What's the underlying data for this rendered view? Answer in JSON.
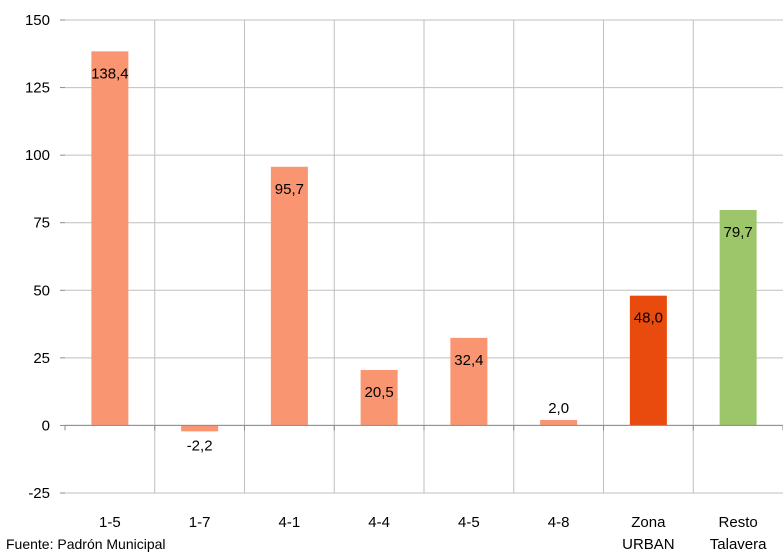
{
  "chart_data": {
    "type": "bar",
    "categories": [
      [
        "1-5"
      ],
      [
        "1-7"
      ],
      [
        "4-1"
      ],
      [
        "4-4"
      ],
      [
        "4-5"
      ],
      [
        "4-8"
      ],
      [
        "Zona",
        "URBAN"
      ],
      [
        "Resto",
        "Talavera"
      ]
    ],
    "values": [
      138.4,
      -2.2,
      95.7,
      20.5,
      32.4,
      2.0,
      48.0,
      79.7
    ],
    "value_labels": [
      "138,4",
      "-2,2",
      "95,7",
      "20,5",
      "32,4",
      "2,0",
      "48,0",
      "79,7"
    ],
    "bar_colors": [
      "#fa9572",
      "#fa9572",
      "#fa9572",
      "#fa9572",
      "#fa9572",
      "#fa9572",
      "#e94a0d",
      "#9dc66b"
    ],
    "ylim": [
      -25,
      150
    ],
    "yticks": [
      -25,
      0,
      25,
      50,
      75,
      100,
      125,
      150
    ],
    "grid": true,
    "grid_color": "#bfbfbf"
  },
  "source_note": "Fuente: Padrón Municipal"
}
